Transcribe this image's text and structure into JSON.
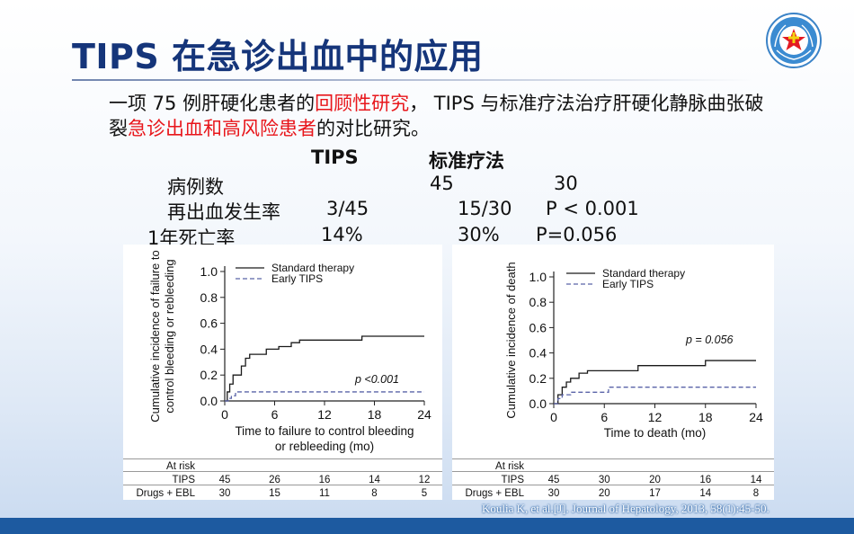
{
  "title": "TIPS 在急诊出血中的应用",
  "intro": {
    "p1": "一项 75 例肝硬化患者的",
    "r1": "回顾性研究",
    "p2": "，  TIPS 与标准疗法治疗肝硬化静脉曲张破裂",
    "r2": "急诊出血和高风险患者",
    "p3": "的对比研究。"
  },
  "stats": {
    "col_tips": "TIPS",
    "col_std": "标准疗法",
    "row1": {
      "label": "病例数",
      "tips": "45",
      "std": "30",
      "p": ""
    },
    "row2": {
      "label": "再出血发生率",
      "tips": "3/45",
      "std": "15/30",
      "p": "P < 0.001"
    },
    "row3": {
      "label": "1年死亡率",
      "tips": "14%",
      "std": "30%",
      "p": "P=0.056"
    }
  },
  "chart_data": [
    {
      "type": "line",
      "title": "",
      "xlabel": "Time to failure to control bleeding or rebleeding (mo)",
      "ylabel": "Cumulative incidence of failure to control bleeding or rebleeding",
      "xlim": [
        0,
        24
      ],
      "ylim": [
        0,
        1.0
      ],
      "xticks": [
        0,
        6,
        12,
        18,
        24
      ],
      "yticks": [
        0.0,
        0.2,
        0.4,
        0.6,
        0.8,
        1.0
      ],
      "xtick_labels": [
        "0",
        "6",
        "12",
        "18",
        "24"
      ],
      "ytick_labels": [
        "0.0",
        "0.2",
        "0.4",
        "0.6",
        "0.8",
        "1.0"
      ],
      "legend": "top-left",
      "annotation": "p <0.001",
      "series": [
        {
          "name": "Standard therapy",
          "style": "solid",
          "color": "#1a1a1a",
          "points": [
            [
              0,
              0
            ],
            [
              0.3,
              0.07
            ],
            [
              0.6,
              0.13
            ],
            [
              1,
              0.2
            ],
            [
              2,
              0.27
            ],
            [
              2.5,
              0.33
            ],
            [
              3,
              0.36
            ],
            [
              5,
              0.4
            ],
            [
              6.5,
              0.42
            ],
            [
              8,
              0.45
            ],
            [
              9,
              0.47
            ],
            [
              16.5,
              0.5
            ],
            [
              24,
              0.5
            ]
          ]
        },
        {
          "name": "Early TIPS",
          "style": "dashed",
          "color": "#5a63a8",
          "points": [
            [
              0,
              0
            ],
            [
              0.4,
              0.02
            ],
            [
              0.8,
              0.04
            ],
            [
              1.3,
              0.07
            ],
            [
              24,
              0.07
            ]
          ]
        }
      ],
      "at_risk": {
        "header": "At risk",
        "times": [
          0,
          6,
          12,
          18,
          24
        ],
        "rows": [
          {
            "label": "TIPS",
            "values": [
              "45",
              "26",
              "16",
              "14",
              "12"
            ]
          },
          {
            "label": "Drugs + EBL",
            "values": [
              "30",
              "15",
              "11",
              "8",
              "5"
            ]
          }
        ]
      }
    },
    {
      "type": "line",
      "title": "",
      "xlabel": "Time to death (mo)",
      "ylabel": "Cumulative incidence of death",
      "xlim": [
        0,
        24
      ],
      "ylim": [
        0,
        1.0
      ],
      "xticks": [
        0,
        6,
        12,
        18,
        24
      ],
      "yticks": [
        0.0,
        0.2,
        0.4,
        0.6,
        0.8,
        1.0
      ],
      "xtick_labels": [
        "0",
        "6",
        "12",
        "18",
        "24"
      ],
      "ytick_labels": [
        "0.0",
        "0.2",
        "0.4",
        "0.6",
        "0.8",
        "1.0"
      ],
      "legend": "top-right",
      "annotation": "p = 0.056",
      "series": [
        {
          "name": "Standard therapy",
          "style": "solid",
          "color": "#1a1a1a",
          "points": [
            [
              0,
              0
            ],
            [
              0.5,
              0.07
            ],
            [
              1,
              0.13
            ],
            [
              1.5,
              0.17
            ],
            [
              2,
              0.2
            ],
            [
              3,
              0.24
            ],
            [
              4,
              0.26
            ],
            [
              10,
              0.3
            ],
            [
              18,
              0.34
            ],
            [
              24,
              0.34
            ]
          ]
        },
        {
          "name": "Early TIPS",
          "style": "dashed",
          "color": "#5a63a8",
          "points": [
            [
              0,
              0
            ],
            [
              0.5,
              0.04
            ],
            [
              1,
              0.07
            ],
            [
              2,
              0.09
            ],
            [
              6.5,
              0.13
            ],
            [
              24,
              0.13
            ]
          ]
        }
      ],
      "at_risk": {
        "header": "At risk",
        "times": [
          0,
          6,
          12,
          18,
          24
        ],
        "rows": [
          {
            "label": "TIPS",
            "values": [
              "45",
              "30",
              "20",
              "16",
              "14"
            ]
          },
          {
            "label": "Drugs + EBL",
            "values": [
              "30",
              "20",
              "17",
              "14",
              "8"
            ]
          }
        ]
      }
    }
  ],
  "citation": "Koulia K, et al.[J]. Journal of Hepatology, 2013, 58(1):45-50.",
  "colors": {
    "title": "#15357a",
    "highlight": "#e8161b",
    "footer": "#1d5aa0",
    "dashed_series": "#5a63a8"
  }
}
